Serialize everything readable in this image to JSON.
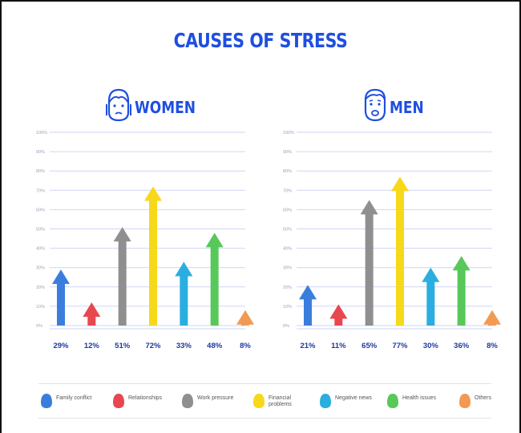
{
  "title": "CAUSES OF STRESS",
  "colors": {
    "family": "#3b7ddd",
    "relationships": "#e8474f",
    "work": "#8f8f8f",
    "financial": "#f7d81a",
    "news": "#2aaee0",
    "health": "#58c85a",
    "others": "#f29a54",
    "title": "#1f4fe0",
    "grid": "#cfd6f2"
  },
  "legend": [
    {
      "key": "family",
      "label": "Family conflict"
    },
    {
      "key": "relationships",
      "label": "Relationships"
    },
    {
      "key": "work",
      "label": "Work pressure"
    },
    {
      "key": "financial",
      "label": "Financial\nproblems"
    },
    {
      "key": "news",
      "label": "Negative news"
    },
    {
      "key": "health",
      "label": "Health issues"
    },
    {
      "key": "others",
      "label": "Others"
    }
  ],
  "panels": {
    "women": {
      "label": "WOMEN"
    },
    "men": {
      "label": "MEN"
    }
  },
  "chart_data": [
    {
      "type": "bar",
      "title": "WOMEN",
      "categories": [
        "Family conflict",
        "Relationships",
        "Work pressure",
        "Financial problems",
        "Negative news",
        "Health issues",
        "Others"
      ],
      "values": [
        29,
        12,
        51,
        72,
        33,
        48,
        8
      ],
      "value_labels": [
        "29%",
        "12%",
        "51%",
        "72%",
        "33%",
        "48%",
        "8%"
      ],
      "y_ticks": [
        "0%",
        "10%",
        "20%",
        "30%",
        "40%",
        "50%",
        "60%",
        "70%",
        "80%",
        "90%",
        "100%"
      ],
      "ylim": [
        0,
        100
      ],
      "grid": true
    },
    {
      "type": "bar",
      "title": "MEN",
      "categories": [
        "Family conflict",
        "Relationships",
        "Work pressure",
        "Financial problems",
        "Negative news",
        "Health issues",
        "Others"
      ],
      "values": [
        21,
        11,
        65,
        77,
        30,
        36,
        8
      ],
      "value_labels": [
        "21%",
        "11%",
        "65%",
        "77%",
        "30%",
        "36%",
        "8%"
      ],
      "y_ticks": [
        "0%",
        "10%",
        "20%",
        "30%",
        "40%",
        "50%",
        "60%",
        "70%",
        "80%",
        "90%",
        "100%"
      ],
      "ylim": [
        0,
        100
      ],
      "grid": true
    }
  ]
}
